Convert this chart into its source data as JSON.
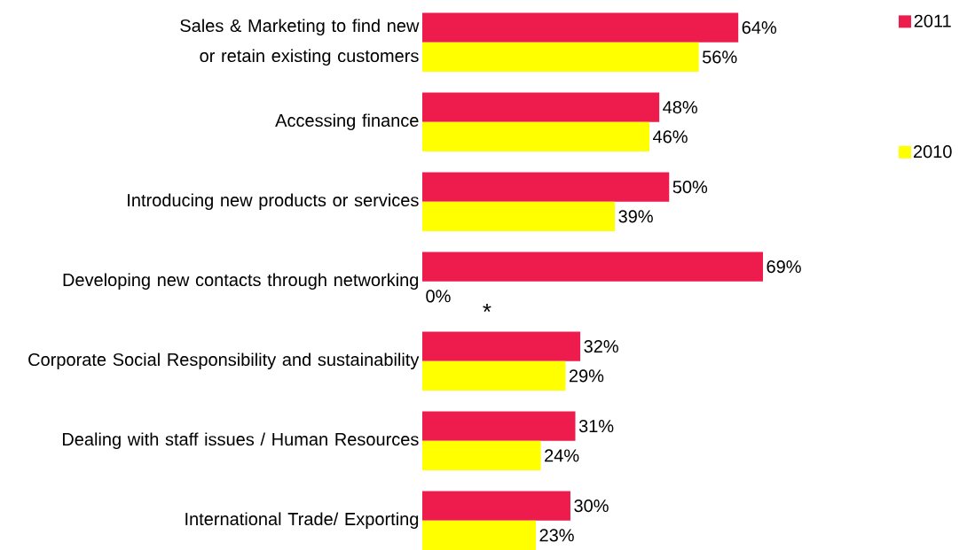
{
  "chart_data": {
    "type": "bar",
    "orientation": "horizontal",
    "categories": [
      "Sales & Marketing to find new or retain existing customers",
      "Accessing finance",
      "Introducing new products or services",
      "Developing new contacts through networking",
      "Corporate Social Responsibility and sustainability",
      "Dealing with staff issues / Human Resources",
      "International Trade/ Exporting"
    ],
    "series": [
      {
        "name": "2011",
        "color": "#ee1b4d",
        "values": [
          64,
          48,
          50,
          69,
          32,
          31,
          30
        ],
        "value_labels": [
          "64%",
          "48%",
          "50%",
          "69%",
          "32%",
          "31%",
          "30%"
        ]
      },
      {
        "name": "2010",
        "color": "#ffff00",
        "values": [
          56,
          46,
          39,
          0,
          29,
          24,
          23
        ],
        "value_labels": [
          "56%",
          "46%",
          "39%",
          "0%",
          "29%",
          "24%",
          "23%"
        ]
      }
    ],
    "legend": "right",
    "annotations": [
      "*"
    ]
  }
}
